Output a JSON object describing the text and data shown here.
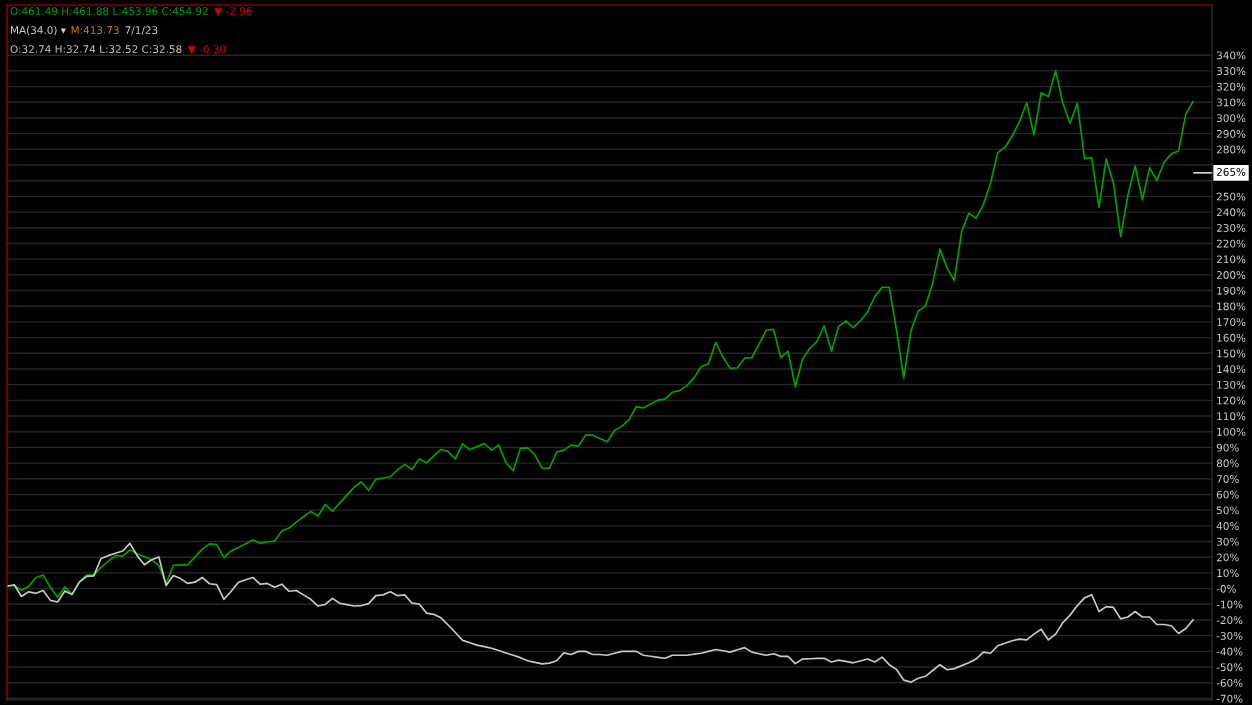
{
  "chart_data": {
    "type": "line",
    "ylim": [
      -71,
      372
    ],
    "categories": [
      null,
      null,
      null,
      null,
      null,
      null,
      null,
      null,
      null,
      null,
      null,
      null,
      null,
      null,
      null,
      null,
      null,
      null,
      null,
      null,
      null,
      null,
      null,
      null,
      null,
      null,
      null,
      null,
      null,
      null,
      null,
      null,
      null,
      null,
      null,
      null,
      null,
      null,
      null,
      null,
      null,
      null,
      null,
      null,
      null,
      null,
      null,
      null,
      null,
      null,
      null,
      null,
      null,
      null,
      null,
      null,
      null,
      null,
      null,
      null,
      null,
      null,
      null,
      null,
      null,
      null,
      null,
      null,
      null,
      null,
      null,
      null,
      null,
      null,
      null,
      null,
      null,
      null,
      null,
      null,
      null,
      null,
      null,
      null,
      null,
      null,
      null,
      null,
      null,
      null,
      null,
      null,
      null,
      null,
      null,
      null,
      null,
      null,
      null,
      null,
      null,
      null,
      null,
      null,
      null,
      null,
      null,
      null,
      null,
      null,
      null,
      null,
      null,
      null,
      null,
      null,
      null,
      null,
      null,
      null,
      null,
      null,
      null,
      null,
      null,
      null,
      null,
      null,
      null,
      null,
      null,
      null,
      null,
      null,
      null,
      null,
      null,
      null,
      null,
      null,
      null,
      null,
      null,
      null,
      null,
      null,
      null,
      null,
      null,
      null,
      null,
      null,
      null,
      null,
      null,
      null,
      null,
      null,
      null,
      null,
      null,
      null,
      null,
      null,
      null
    ],
    "yticks": [
      {
        "value": -70,
        "label": "-70%"
      },
      {
        "value": -60,
        "label": "-60%"
      },
      {
        "value": -50,
        "label": "-50%"
      },
      {
        "value": -40,
        "label": "-40%"
      },
      {
        "value": -30,
        "label": "-30%"
      },
      {
        "value": -20,
        "label": "-20%"
      },
      {
        "value": -10,
        "label": "-10%"
      },
      {
        "value": 0,
        "label": "-0%"
      },
      {
        "value": 10,
        "label": "10%"
      },
      {
        "value": 20,
        "label": "20%"
      },
      {
        "value": 30,
        "label": "30%"
      },
      {
        "value": 40,
        "label": "40%"
      },
      {
        "value": 50,
        "label": "50%"
      },
      {
        "value": 60,
        "label": "60%"
      },
      {
        "value": 70,
        "label": "70%"
      },
      {
        "value": 80,
        "label": "80%"
      },
      {
        "value": 90,
        "label": "90%"
      },
      {
        "value": 100,
        "label": "100%"
      },
      {
        "value": 110,
        "label": "110%"
      },
      {
        "value": 120,
        "label": "120%"
      },
      {
        "value": 130,
        "label": "130%"
      },
      {
        "value": 140,
        "label": "140%"
      },
      {
        "value": 150,
        "label": "150%"
      },
      {
        "value": 160,
        "label": "160%"
      },
      {
        "value": 170,
        "label": "170%"
      },
      {
        "value": 180,
        "label": "180%"
      },
      {
        "value": 190,
        "label": "190%"
      },
      {
        "value": 200,
        "label": "200%"
      },
      {
        "value": 210,
        "label": "210%"
      },
      {
        "value": 220,
        "label": "220%"
      },
      {
        "value": 230,
        "label": "230%"
      },
      {
        "value": 240,
        "label": "240%"
      },
      {
        "value": 250,
        "label": "250%"
      },
      {
        "value": 260,
        "label": null
      },
      {
        "value": 270,
        "label": null
      },
      {
        "value": 280,
        "label": "280%"
      },
      {
        "value": 290,
        "label": "290%"
      },
      {
        "value": 300,
        "label": "300%"
      },
      {
        "value": 310,
        "label": "310%"
      },
      {
        "value": 320,
        "label": "320%"
      },
      {
        "value": 330,
        "label": "330%"
      },
      {
        "value": 340,
        "label": "340%"
      }
    ],
    "tick_labels": "y",
    "grid": "y",
    "marker": "none",
    "line_style": "solid",
    "ref_lines": [
      {
        "axis": "y",
        "value": 265,
        "label": "265%",
        "color": "#ffffff"
      }
    ],
    "series": [
      {
        "color": "#00a000",
        "values": [
          1.5,
          2.0,
          -1.0,
          1.5,
          7.1,
          8.6,
          0.8,
          -5.5,
          1.0,
          -3.5,
          4.1,
          8.6,
          8.6,
          13.6,
          17.4,
          21.2,
          20.7,
          24.7,
          22.2,
          20.3,
          18.4,
          14.6,
          3.3,
          14.9,
          15.1,
          15.2,
          20.2,
          25.2,
          28.5,
          28.0,
          19.7,
          24.2,
          26.2,
          28.6,
          31.0,
          29.0,
          29.7,
          30.3,
          36.8,
          38.6,
          42.4,
          45.8,
          49.2,
          46.2,
          53.7,
          49.4,
          54.5,
          59.6,
          64.6,
          68.1,
          62.5,
          69.6,
          70.5,
          71.3,
          75.7,
          79.2,
          75.9,
          82.7,
          80.2,
          84.5,
          88.8,
          87.3,
          82.7,
          92.3,
          88.5,
          90.5,
          92.5,
          88.3,
          91.5,
          80.2,
          75.2,
          89.5,
          89.7,
          85.2,
          76.7,
          76.7,
          87.0,
          88.3,
          91.5,
          90.8,
          97.8,
          97.8,
          95.7,
          93.6,
          100.8,
          103.4,
          107.5,
          116.0,
          115.2,
          117.7,
          120.1,
          120.8,
          125.2,
          126.2,
          129.4,
          134.3,
          141.6,
          143.3,
          156.9,
          147.6,
          140.4,
          140.8,
          146.9,
          147.2,
          156.0,
          164.7,
          165.2,
          147.2,
          151.3,
          128.7,
          146.4,
          153.1,
          157.5,
          167.6,
          151.3,
          167.2,
          170.6,
          166.4,
          170.6,
          176.4,
          186.2,
          192.0,
          192.0,
          164.7,
          134.3,
          164.3,
          176.9,
          180.1,
          194.7,
          216.4,
          204.3,
          196.4,
          227.6,
          239.3,
          236.1,
          244.6,
          258.4,
          277.9,
          281.3,
          288.5,
          297.6,
          309.7,
          289.2,
          316.1,
          313.6,
          330.1,
          309.4,
          296.6,
          309.4,
          274.1,
          274.7,
          243.1,
          273.9,
          258.4,
          224.4,
          251.0,
          269.4,
          247.8,
          268.3,
          260.1,
          271.8,
          277.1,
          279.0,
          302.4,
          310.4
        ]
      },
      {
        "color": "#c8c8c8",
        "values": [
          1.5,
          2.5,
          -5.0,
          -2.0,
          -3.0,
          -1.2,
          -7.5,
          -8.5,
          -1.5,
          -3.7,
          4.1,
          7.8,
          8.1,
          19.2,
          21.0,
          22.5,
          24.0,
          28.8,
          21.0,
          15.2,
          18.4,
          20.2,
          2.0,
          8.3,
          6.4,
          3.3,
          4.1,
          7.1,
          3.1,
          2.5,
          -6.8,
          -1.7,
          4.1,
          5.6,
          7.1,
          2.8,
          3.3,
          0.8,
          2.8,
          -1.7,
          -1.2,
          -4.0,
          -6.8,
          -11.1,
          -10.1,
          -6.2,
          -9.3,
          -10.2,
          -11.1,
          -10.8,
          -9.6,
          -4.5,
          -4.0,
          -2.0,
          -4.5,
          -4.0,
          -9.3,
          -9.8,
          -15.6,
          -16.4,
          -18.6,
          -23.2,
          -28,
          -33,
          -34.5,
          -36,
          -37,
          -38,
          -39.5,
          -41,
          -42.5,
          -44,
          -46,
          -47,
          -48,
          -47.5,
          -46,
          -41,
          -42,
          -40,
          -40,
          -42,
          -42,
          -42.5,
          -41.2,
          -40.0,
          -40.0,
          -40.0,
          -42.5,
          -43.1,
          -43.8,
          -44.4,
          -42.5,
          -42.5,
          -42.5,
          -41.8,
          -41.2,
          -40.0,
          -38.8,
          -39.6,
          -40.5,
          -39.0,
          -37.6,
          -40.5,
          -41.5,
          -42.5,
          -41.5,
          -43.2,
          -43.2,
          -47.8,
          -44.9,
          -44.7,
          -44.5,
          -44.4,
          -46.8,
          -45.6,
          -46.4,
          -47.3,
          -46.1,
          -44.9,
          -46.8,
          -43.7,
          -48.5,
          -51.5,
          -58.3,
          -59.6,
          -57.1,
          -55.9,
          -52.2,
          -48.5,
          -51.7,
          -51.0,
          -49.1,
          -47.3,
          -44.9,
          -40.5,
          -41.2,
          -36.4,
          -34.8,
          -33.2,
          -32.2,
          -32.7,
          -29.0,
          -25.9,
          -32.7,
          -29.0,
          -21.7,
          -16.9,
          -10.8,
          -5.9,
          -3.9,
          -14.6,
          -11.5,
          -12.0,
          -19.3,
          -18.1,
          -14.6,
          -18.1,
          -18.1,
          -22.9,
          -22.9,
          -23.7,
          -28.6,
          -25.4,
          -20.0
        ]
      }
    ],
    "annotations": [
      "O:461.49 H:461.88 L:453.96 C:454.92",
      "▼ -2.96",
      "MA(34.0) ▾",
      "M:413.73",
      "7/1/23",
      "O:32.74 H:32.74 L:32.52 C:32.58",
      "▼ -0.30"
    ]
  }
}
